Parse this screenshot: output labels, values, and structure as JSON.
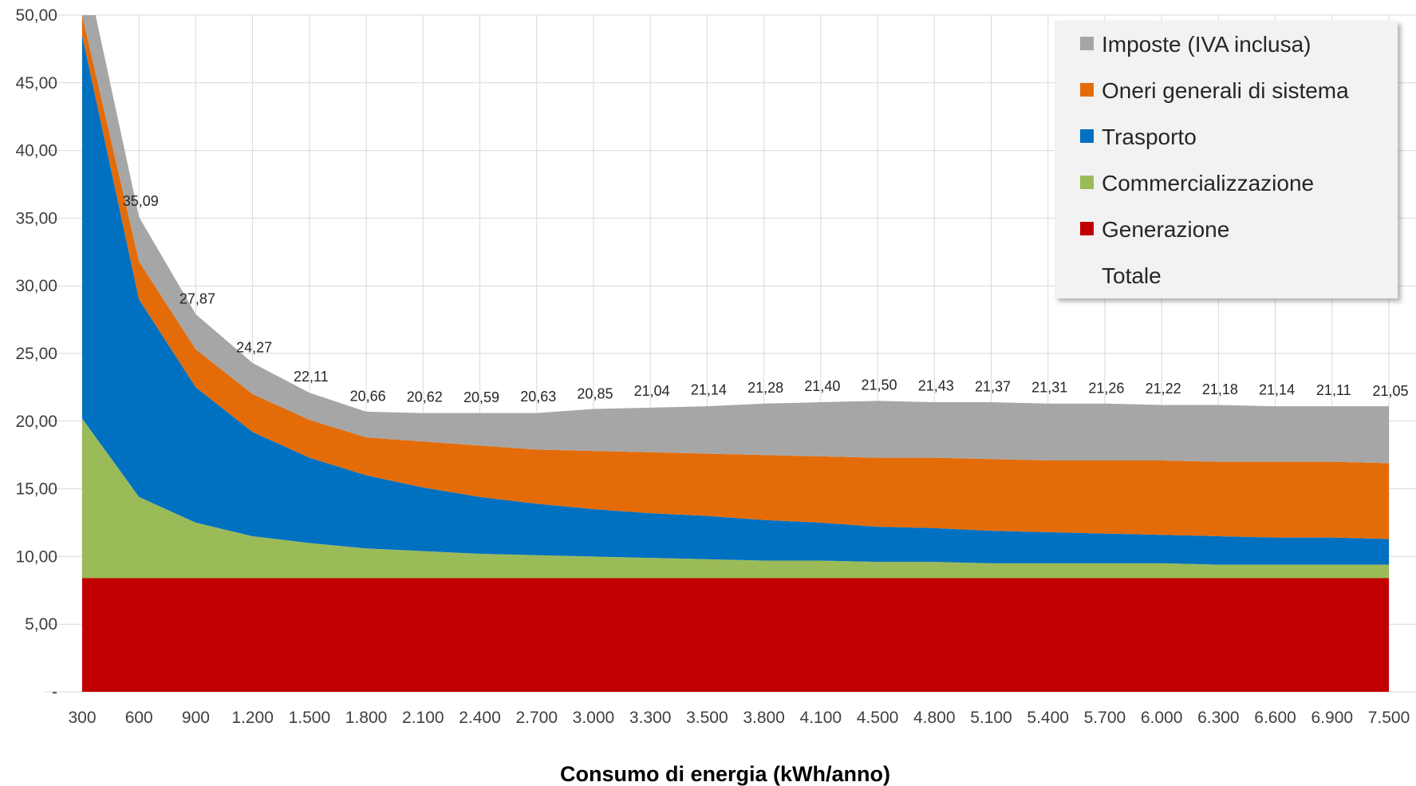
{
  "chart_data": {
    "type": "area",
    "xlabel": "Consumo di energia (kWh/anno)",
    "ylabel": "",
    "ylim": [
      0,
      50
    ],
    "ytick_labels": [
      "-",
      "5,00",
      "10,00",
      "15,00",
      "20,00",
      "25,00",
      "30,00",
      "35,00",
      "40,00",
      "45,00",
      "50,00"
    ],
    "categories": [
      "300",
      "600",
      "900",
      "1.200",
      "1.500",
      "1.800",
      "2.100",
      "2.400",
      "2.700",
      "3.000",
      "3.300",
      "3.500",
      "3.800",
      "4.100",
      "4.500",
      "4.800",
      "5.100",
      "5.400",
      "5.700",
      "6.000",
      "6.300",
      "6.600",
      "6.900",
      "7.500"
    ],
    "grid": true,
    "legend_position": "top-right",
    "series": [
      {
        "name": "Generazione",
        "color": "#C00000",
        "values": [
          8.4,
          8.4,
          8.4,
          8.4,
          8.4,
          8.4,
          8.4,
          8.4,
          8.4,
          8.4,
          8.4,
          8.4,
          8.4,
          8.4,
          8.4,
          8.4,
          8.4,
          8.4,
          8.4,
          8.4,
          8.4,
          8.4,
          8.4,
          8.4
        ]
      },
      {
        "name": "Commercializzazione",
        "color": "#9BBB59",
        "values": [
          11.8,
          6.0,
          4.1,
          3.1,
          2.6,
          2.2,
          2.0,
          1.8,
          1.7,
          1.6,
          1.5,
          1.4,
          1.3,
          1.3,
          1.2,
          1.2,
          1.1,
          1.1,
          1.1,
          1.1,
          1.0,
          1.0,
          1.0,
          1.0
        ]
      },
      {
        "name": "Trasporto",
        "color": "#0070C0",
        "values": [
          28.3,
          14.6,
          10.0,
          7.7,
          6.3,
          5.4,
          4.7,
          4.2,
          3.8,
          3.5,
          3.3,
          3.2,
          3.0,
          2.8,
          2.6,
          2.5,
          2.4,
          2.3,
          2.2,
          2.1,
          2.1,
          2.0,
          2.0,
          1.9
        ]
      },
      {
        "name": "Oneri generali di sistema",
        "color": "#E36C09",
        "values": [
          1.5,
          2.8,
          2.8,
          2.8,
          2.8,
          2.8,
          3.4,
          3.8,
          4.0,
          4.3,
          4.5,
          4.6,
          4.8,
          4.9,
          5.1,
          5.2,
          5.3,
          5.3,
          5.4,
          5.5,
          5.5,
          5.6,
          5.6,
          5.6
        ]
      },
      {
        "name": "Imposte (IVA inclusa)",
        "color": "#A6A6A6",
        "values": [
          4.6,
          3.3,
          2.6,
          2.3,
          2.0,
          1.9,
          2.1,
          2.4,
          2.7,
          3.1,
          3.3,
          3.5,
          3.8,
          4.0,
          4.2,
          4.1,
          4.2,
          4.2,
          4.2,
          4.1,
          4.2,
          4.1,
          4.1,
          4.2
        ]
      }
    ],
    "totale": {
      "name": "Totale",
      "values": [
        54.6,
        35.09,
        27.87,
        24.27,
        22.11,
        20.66,
        20.62,
        20.59,
        20.63,
        20.85,
        21.04,
        21.14,
        21.28,
        21.4,
        21.5,
        21.43,
        21.37,
        21.31,
        21.26,
        21.22,
        21.18,
        21.14,
        21.11,
        21.05
      ],
      "labels": [
        "",
        "35,09",
        "27,87",
        "24,27",
        "22,11",
        "20,66",
        "20,62",
        "20,59",
        "20,63",
        "20,85",
        "21,04",
        "21,14",
        "21,28",
        "21,40",
        "21,50",
        "21,43",
        "21,37",
        "21,31",
        "21,26",
        "21,22",
        "21,18",
        "21,14",
        "21,11",
        "21,05"
      ]
    },
    "legend": [
      {
        "label": "Imposte (IVA inclusa)",
        "color": "#A6A6A6"
      },
      {
        "label": "Oneri generali di sistema",
        "color": "#E36C09"
      },
      {
        "label": "Trasporto",
        "color": "#0070C0"
      },
      {
        "label": "Commercializzazione",
        "color": "#9BBB59"
      },
      {
        "label": "Generazione",
        "color": "#C00000"
      },
      {
        "label": "Totale",
        "color": ""
      }
    ]
  }
}
